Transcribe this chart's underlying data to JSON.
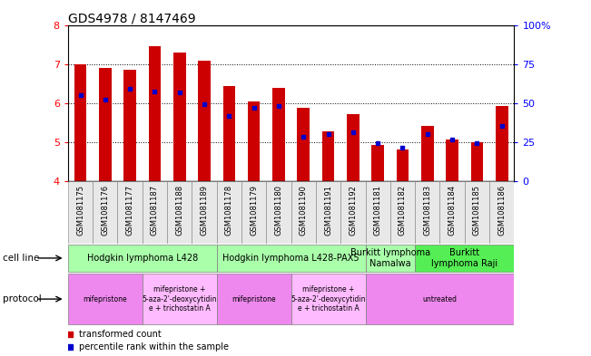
{
  "title": "GDS4978 / 8147469",
  "samples": [
    "GSM1081175",
    "GSM1081176",
    "GSM1081177",
    "GSM1081187",
    "GSM1081188",
    "GSM1081189",
    "GSM1081178",
    "GSM1081179",
    "GSM1081180",
    "GSM1081190",
    "GSM1081191",
    "GSM1081192",
    "GSM1081181",
    "GSM1081182",
    "GSM1081183",
    "GSM1081184",
    "GSM1081185",
    "GSM1081186"
  ],
  "red_values": [
    7.0,
    6.9,
    6.85,
    7.45,
    7.3,
    7.08,
    6.45,
    6.05,
    6.4,
    5.88,
    5.28,
    5.72,
    4.93,
    4.83,
    5.42,
    5.08,
    5.0,
    5.93
  ],
  "blue_values": [
    6.2,
    6.1,
    6.37,
    6.3,
    6.28,
    5.97,
    5.68,
    5.88,
    5.92,
    5.15,
    5.22,
    5.27,
    4.97,
    4.87,
    5.22,
    5.08,
    4.97,
    5.42
  ],
  "ylim_left": [
    4,
    8
  ],
  "ylim_right": [
    0,
    100
  ],
  "yticks_left": [
    4,
    5,
    6,
    7,
    8
  ],
  "yticks_right": [
    0,
    25,
    50,
    75,
    100
  ],
  "ytick_labels_right": [
    "0",
    "25",
    "50",
    "75",
    "100%"
  ],
  "bar_color": "#cc0000",
  "blue_color": "#0000cc",
  "bg_color": "#e8e8e8",
  "cell_line_groups": [
    {
      "label": "Hodgkin lymphoma L428",
      "start": 0,
      "end": 5,
      "color": "#aaffaa"
    },
    {
      "label": "Hodgkin lymphoma L428-PAX5",
      "start": 6,
      "end": 11,
      "color": "#aaffaa"
    },
    {
      "label": "Burkitt lymphoma\nNamalwa",
      "start": 12,
      "end": 13,
      "color": "#aaffaa"
    },
    {
      "label": "Burkitt\nlymphoma Raji",
      "start": 14,
      "end": 17,
      "color": "#55ee55"
    }
  ],
  "protocol_groups": [
    {
      "label": "mifepristone",
      "start": 0,
      "end": 2,
      "color": "#ee88ee"
    },
    {
      "label": "mifepristone +\n5-aza-2'-deoxycytidin\ne + trichostatin A",
      "start": 3,
      "end": 5,
      "color": "#ffbbff"
    },
    {
      "label": "mifepristone",
      "start": 6,
      "end": 8,
      "color": "#ee88ee"
    },
    {
      "label": "mifepristone +\n5-aza-2'-deoxycytidin\ne + trichostatin A",
      "start": 9,
      "end": 11,
      "color": "#ffbbff"
    },
    {
      "label": "untreated",
      "start": 12,
      "end": 17,
      "color": "#ee88ee"
    }
  ],
  "legend_red": "transformed count",
  "legend_blue": "percentile rank within the sample",
  "bar_width": 0.5,
  "label_cell_line": "cell line",
  "label_protocol": "protocol"
}
